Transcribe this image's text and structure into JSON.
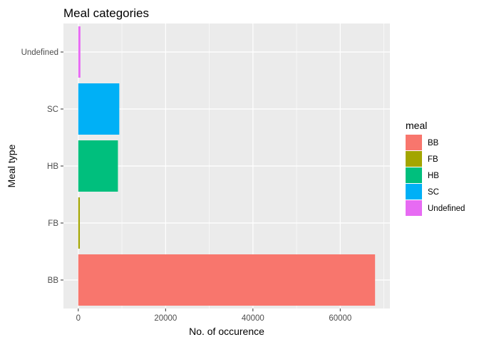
{
  "chart_data": {
    "type": "bar",
    "orientation": "horizontal",
    "title": "Meal categories",
    "xlabel": "No. of occurence",
    "ylabel": "Meal type",
    "categories": [
      "BB",
      "FB",
      "HB",
      "SC",
      "Undefined"
    ],
    "values": [
      67978,
      360,
      9080,
      9391,
      492
    ],
    "colors": [
      "#F8766D",
      "#A3A500",
      "#00BF7D",
      "#00B0F6",
      "#E76BF3"
    ],
    "xlim": [
      -3400,
      71378
    ],
    "xticks": [
      0,
      20000,
      40000,
      60000
    ],
    "xtick_labels": [
      "0",
      "20000",
      "40000",
      "60000"
    ],
    "grid": true,
    "legend": {
      "title": "meal",
      "position": "right",
      "entries": [
        "BB",
        "FB",
        "HB",
        "SC",
        "Undefined"
      ]
    }
  }
}
